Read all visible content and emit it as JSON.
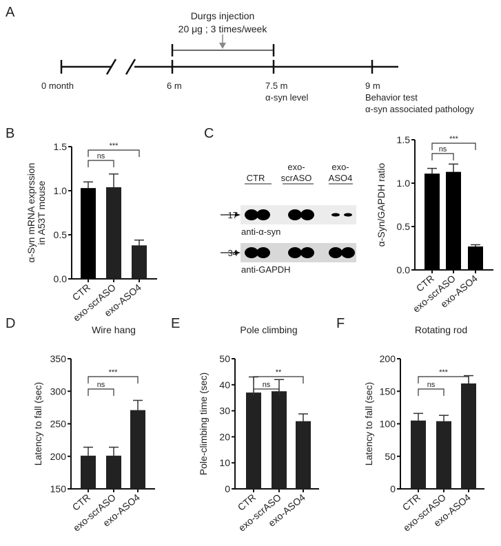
{
  "panels": {
    "a": "A",
    "b": "B",
    "c": "C",
    "d": "D",
    "e": "E",
    "f": "F"
  },
  "timeline": {
    "injection_title": "Durgs injection",
    "injection_dose": "20 μg ; 3 times/week",
    "points": [
      {
        "label": "0 month"
      },
      {
        "label": "6 m"
      },
      {
        "label": "7.5 m",
        "note1": "α-syn level"
      },
      {
        "label": "9 m",
        "note1": "Behavior test",
        "note2": "α-syn associated pathology"
      }
    ]
  },
  "blot": {
    "lanes": [
      {
        "l1": "",
        "l2": "CTR"
      },
      {
        "l1": "exo-",
        "l2": "scrASO"
      },
      {
        "l1": "exo-",
        "l2": "ASO4"
      }
    ],
    "rows": [
      {
        "marker": "17",
        "label": "anti-α-syn",
        "intensity": [
          1,
          1,
          1,
          1,
          0.25,
          0.3
        ]
      },
      {
        "marker": "34",
        "label": "anti-GAPDH",
        "intensity": [
          1,
          1,
          1,
          1,
          1,
          1
        ]
      }
    ]
  },
  "chart_data": [
    {
      "id": "b",
      "type": "bar",
      "title": "",
      "ylabel": [
        "α-Syn mRNA exprssion",
        "in A53T mouse"
      ],
      "categories": [
        "CTR",
        "exo-scrASO",
        "exo-ASO4"
      ],
      "values": [
        1.03,
        1.04,
        0.38
      ],
      "errors": [
        0.07,
        0.15,
        0.06
      ],
      "ylim": [
        0,
        1.5
      ],
      "yticks": [
        "0.0",
        "0.5",
        "1.0",
        "1.5"
      ],
      "colors": [
        "#000000",
        "#222222",
        "#222222"
      ],
      "significance": [
        {
          "from": 0,
          "to": 1,
          "label": "ns"
        },
        {
          "from": 0,
          "to": 2,
          "label": "***"
        }
      ]
    },
    {
      "id": "c",
      "type": "bar",
      "title": "",
      "ylabel": [
        "α-Syn/GAPDH ratio"
      ],
      "categories": [
        "CTR",
        "exo-scrASO",
        "exo-ASO4"
      ],
      "values": [
        1.11,
        1.13,
        0.27
      ],
      "errors": [
        0.06,
        0.09,
        0.02
      ],
      "ylim": [
        0,
        1.5
      ],
      "yticks": [
        "0.0",
        "0.5",
        "1.0",
        "1.5"
      ],
      "colors": [
        "#000000",
        "#000000",
        "#000000"
      ],
      "significance": [
        {
          "from": 0,
          "to": 1,
          "label": "ns"
        },
        {
          "from": 0,
          "to": 2,
          "label": "***"
        }
      ]
    },
    {
      "id": "d",
      "type": "bar",
      "title": "Wire hang",
      "ylabel": [
        "Latency to fall (sec)"
      ],
      "categories": [
        "CTR",
        "exo-scrASO",
        "exo-ASO4"
      ],
      "values": [
        201,
        201,
        271
      ],
      "errors": [
        13,
        13,
        15
      ],
      "ylim": [
        150,
        350
      ],
      "yticks": [
        "150",
        "200",
        "250",
        "300",
        "350"
      ],
      "colors": [
        "#222222",
        "#222222",
        "#222222"
      ],
      "significance": [
        {
          "from": 0,
          "to": 1,
          "label": "ns"
        },
        {
          "from": 0,
          "to": 2,
          "label": "***"
        }
      ]
    },
    {
      "id": "e",
      "type": "bar",
      "title": "Pole climbing",
      "ylabel": [
        "Pole-climbing time (sec)"
      ],
      "categories": [
        "CTR",
        "exo-scrASO",
        "exo-ASO4"
      ],
      "values": [
        37,
        37.5,
        26
      ],
      "errors": [
        6,
        4.5,
        2.8
      ],
      "ylim": [
        0,
        50
      ],
      "yticks": [
        "0",
        "10",
        "20",
        "30",
        "40",
        "50"
      ],
      "colors": [
        "#222222",
        "#222222",
        "#222222"
      ],
      "significance": [
        {
          "from": 0,
          "to": 1,
          "label": "ns"
        },
        {
          "from": 0,
          "to": 2,
          "label": "**"
        }
      ]
    },
    {
      "id": "f",
      "type": "bar",
      "title": "Rotating rod",
      "ylabel": [
        "Latency to fall (sec)"
      ],
      "categories": [
        "CTR",
        "exo-scrASO",
        "exo-ASO4"
      ],
      "values": [
        105,
        104,
        162
      ],
      "errors": [
        11,
        9,
        12
      ],
      "ylim": [
        0,
        200
      ],
      "yticks": [
        "0",
        "50",
        "100",
        "150",
        "200"
      ],
      "colors": [
        "#222222",
        "#222222",
        "#222222"
      ],
      "significance": [
        {
          "from": 0,
          "to": 1,
          "label": "ns"
        },
        {
          "from": 0,
          "to": 2,
          "label": "***"
        }
      ]
    }
  ]
}
